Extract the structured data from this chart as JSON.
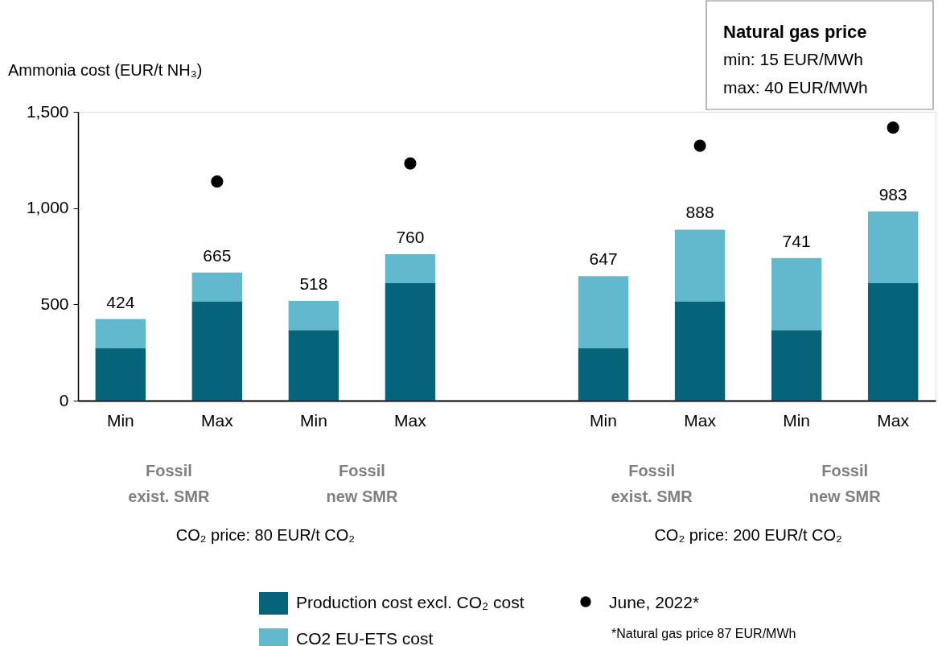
{
  "chart_data": {
    "type": "bar",
    "stacked": true,
    "ylabel": "Ammonia cost (EUR/t NH₃)",
    "categories": [
      "Min",
      "Max",
      "Min",
      "Max",
      null,
      "Min",
      "Max",
      "Min",
      "Max"
    ],
    "series": [
      {
        "name": "Production cost excl. CO₂ cost",
        "color": "#05647a",
        "values": [
          272,
          514,
          367,
          610,
          null,
          272,
          514,
          367,
          610
        ]
      },
      {
        "name": "CO2 EU-ETS cost",
        "color": "#62b8cc",
        "values": [
          152,
          151,
          151,
          150,
          null,
          375,
          374,
          374,
          373
        ]
      },
      {
        "name": "June, 2022*",
        "type": "scatter",
        "color": "#000000",
        "values": [
          null,
          1138,
          null,
          1232,
          null,
          null,
          1324,
          null,
          1418
        ]
      }
    ],
    "totals": [
      "424",
      "665",
      "518",
      "760",
      null,
      "647",
      "888",
      "741",
      "983"
    ],
    "ylim": [
      0,
      1500
    ],
    "yticks": [
      0,
      500,
      {
        "value": 1000,
        "label": "1,000"
      },
      {
        "value": 1500,
        "label": "1,500"
      }
    ],
    "grid": false,
    "legend": "bottom",
    "marker": "circle",
    "annotations": [
      "Natural gas price",
      "min: 15 EUR/MWh",
      "max: 40 EUR/MWh",
      "Fossil\nexist. SMR",
      "Fossil\nnew SMR",
      "Fossil\nexist. SMR",
      "Fossil\nnew SMR",
      "CO₂ price: 80 EUR/t CO₂",
      "CO₂ price: 200 EUR/t CO₂",
      "*Natural gas price 87 EUR/MWh"
    ]
  }
}
